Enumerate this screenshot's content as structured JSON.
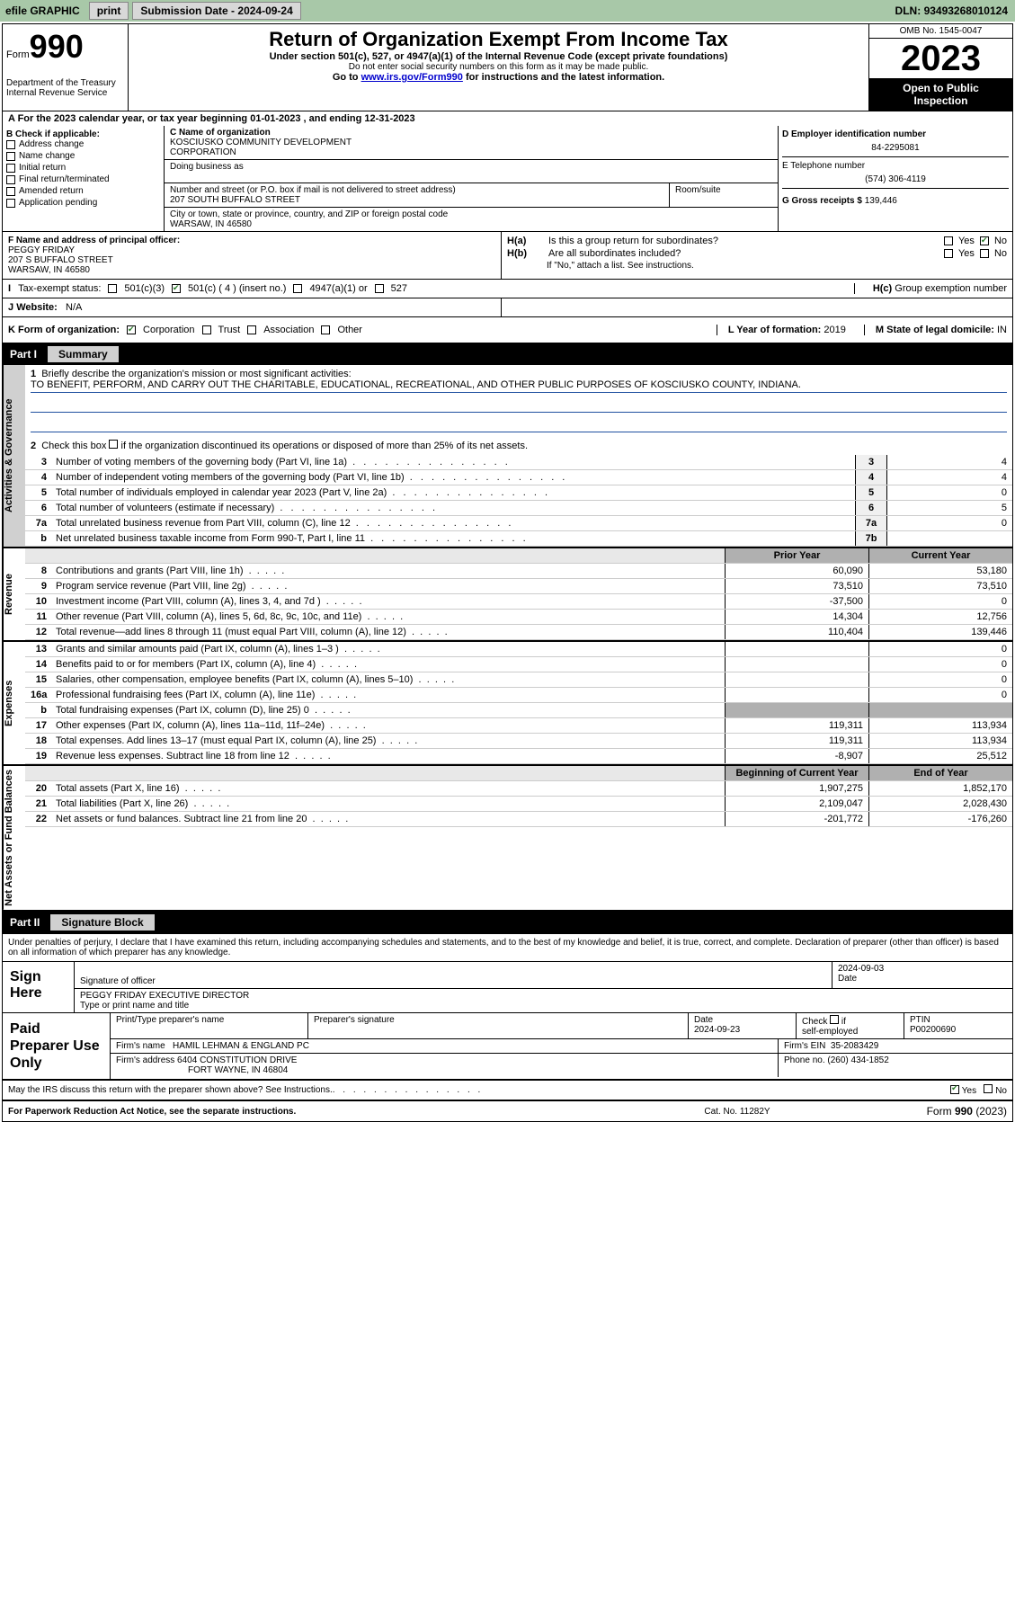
{
  "topbar": {
    "efile": "efile GRAPHIC",
    "print": "print",
    "submission_label": "Submission Date -",
    "submission_date": "2024-09-24",
    "dln_label": "DLN:",
    "dln": "93493268010124"
  },
  "header": {
    "form_label": "Form",
    "form_number": "990",
    "dept1": "Department of the Treasury",
    "dept2": "Internal Revenue Service",
    "title": "Return of Organization Exempt From Income Tax",
    "subtitle1": "Under section 501(c), 527, or 4947(a)(1) of the Internal Revenue Code (except private foundations)",
    "subtitle2": "Do not enter social security numbers on this form as it may be made public.",
    "subtitle3": "Go to www.irs.gov/Form990 for instructions and the latest information.",
    "omb": "OMB No. 1545-0047",
    "year": "2023",
    "inspect1": "Open to Public",
    "inspect2": "Inspection"
  },
  "tax_year": {
    "prefix": "A For the 2023 calendar year, or tax year beginning",
    "begin": "01-01-2023",
    "mid": ", and ending",
    "end": "12-31-2023"
  },
  "section_b": {
    "label": "B Check if applicable:",
    "opts": [
      "Address change",
      "Name change",
      "Initial return",
      "Final return/terminated",
      "Amended return",
      "Application pending"
    ]
  },
  "section_c": {
    "name_label": "C Name of organization",
    "name1": "KOSCIUSKO COMMUNITY DEVELOPMENT",
    "name2": "CORPORATION",
    "dba_label": "Doing business as",
    "street_label": "Number and street (or P.O. box if mail is not delivered to street address)",
    "street": "207 SOUTH BUFFALO STREET",
    "room_label": "Room/suite",
    "city_label": "City or town, state or province, country, and ZIP or foreign postal code",
    "city": "WARSAW, IN  46580"
  },
  "section_d": {
    "label": "D Employer identification number",
    "ein": "84-2295081"
  },
  "section_e": {
    "label": "E Telephone number",
    "phone": "(574) 306-4119"
  },
  "section_g": {
    "label": "G Gross receipts $",
    "amount": "139,446"
  },
  "section_f": {
    "label": "F Name and address of principal officer:",
    "name": "PEGGY FRIDAY",
    "street": "207 S BUFFALO STREET",
    "city": "WARSAW, IN  46580"
  },
  "section_h": {
    "a_label": "H(a)",
    "a_text": "Is this a group return for subordinates?",
    "b_label": "H(b)",
    "b_text": "Are all subordinates included?",
    "b_note": "If \"No,\" attach a list. See instructions.",
    "c_label": "H(c)",
    "c_text": "Group exemption number",
    "yes": "Yes",
    "no": "No"
  },
  "section_i": {
    "label": "I",
    "text": "Tax-exempt status:",
    "opts": [
      "501(c)(3)",
      "501(c) ( 4 ) (insert no.)",
      "4947(a)(1) or",
      "527"
    ]
  },
  "section_j": {
    "label": "J",
    "text": "Website:",
    "val": "N/A"
  },
  "section_k": {
    "label": "K Form of organization:",
    "opts": [
      "Corporation",
      "Trust",
      "Association",
      "Other"
    ]
  },
  "section_l": {
    "label": "L Year of formation:",
    "val": "2019"
  },
  "section_m": {
    "label": "M State of legal domicile:",
    "val": "IN"
  },
  "part1": {
    "num": "Part I",
    "title": "Summary",
    "tab_gov": "Activities & Governance",
    "tab_rev": "Revenue",
    "tab_exp": "Expenses",
    "tab_net": "Net Assets or Fund Balances",
    "line1_label": "Briefly describe the organization's mission or most significant activities:",
    "line1_text": "TO BENEFIT, PERFORM, AND CARRY OUT THE CHARITABLE, EDUCATIONAL, RECREATIONAL, AND OTHER PUBLIC PURPOSES OF KOSCIUSKO COUNTY, INDIANA.",
    "line2": "Check this box      if the organization discontinued its operations or disposed of more than 25% of its net assets.",
    "lines_gov": [
      {
        "n": "3",
        "t": "Number of voting members of the governing body (Part VI, line 1a)",
        "box": "3",
        "v": "4"
      },
      {
        "n": "4",
        "t": "Number of independent voting members of the governing body (Part VI, line 1b)",
        "box": "4",
        "v": "4"
      },
      {
        "n": "5",
        "t": "Total number of individuals employed in calendar year 2023 (Part V, line 2a)",
        "box": "5",
        "v": "0"
      },
      {
        "n": "6",
        "t": "Total number of volunteers (estimate if necessary)",
        "box": "6",
        "v": "5"
      },
      {
        "n": "7a",
        "t": "Total unrelated business revenue from Part VIII, column (C), line 12",
        "box": "7a",
        "v": "0"
      },
      {
        "n": "b",
        "t": "Net unrelated business taxable income from Form 990-T, Part I, line 11",
        "box": "7b",
        "v": ""
      }
    ],
    "col_prior": "Prior Year",
    "col_current": "Current Year",
    "lines_rev": [
      {
        "n": "8",
        "t": "Contributions and grants (Part VIII, line 1h)",
        "p": "60,090",
        "c": "53,180"
      },
      {
        "n": "9",
        "t": "Program service revenue (Part VIII, line 2g)",
        "p": "73,510",
        "c": "73,510"
      },
      {
        "n": "10",
        "t": "Investment income (Part VIII, column (A), lines 3, 4, and 7d )",
        "p": "-37,500",
        "c": "0"
      },
      {
        "n": "11",
        "t": "Other revenue (Part VIII, column (A), lines 5, 6d, 8c, 9c, 10c, and 11e)",
        "p": "14,304",
        "c": "12,756"
      },
      {
        "n": "12",
        "t": "Total revenue—add lines 8 through 11 (must equal Part VIII, column (A), line 12)",
        "p": "110,404",
        "c": "139,446"
      }
    ],
    "lines_exp": [
      {
        "n": "13",
        "t": "Grants and similar amounts paid (Part IX, column (A), lines 1–3 )",
        "p": "",
        "c": "0"
      },
      {
        "n": "14",
        "t": "Benefits paid to or for members (Part IX, column (A), line 4)",
        "p": "",
        "c": "0"
      },
      {
        "n": "15",
        "t": "Salaries, other compensation, employee benefits (Part IX, column (A), lines 5–10)",
        "p": "",
        "c": "0"
      },
      {
        "n": "16a",
        "t": "Professional fundraising fees (Part IX, column (A), line 11e)",
        "p": "",
        "c": "0"
      },
      {
        "n": "b",
        "t": "Total fundraising expenses (Part IX, column (D), line 25) 0",
        "p": "GRAY",
        "c": "GRAY"
      },
      {
        "n": "17",
        "t": "Other expenses (Part IX, column (A), lines 11a–11d, 11f–24e)",
        "p": "119,311",
        "c": "113,934"
      },
      {
        "n": "18",
        "t": "Total expenses. Add lines 13–17 (must equal Part IX, column (A), line 25)",
        "p": "119,311",
        "c": "113,934"
      },
      {
        "n": "19",
        "t": "Revenue less expenses. Subtract line 18 from line 12",
        "p": "-8,907",
        "c": "25,512"
      }
    ],
    "col_begin": "Beginning of Current Year",
    "col_end": "End of Year",
    "lines_net": [
      {
        "n": "20",
        "t": "Total assets (Part X, line 16)",
        "p": "1,907,275",
        "c": "1,852,170"
      },
      {
        "n": "21",
        "t": "Total liabilities (Part X, line 26)",
        "p": "2,109,047",
        "c": "2,028,430"
      },
      {
        "n": "22",
        "t": "Net assets or fund balances. Subtract line 21 from line 20",
        "p": "-201,772",
        "c": "-176,260"
      }
    ]
  },
  "part2": {
    "num": "Part II",
    "title": "Signature Block",
    "intro": "Under penalties of perjury, I declare that I have examined this return, including accompanying schedules and statements, and to the best of my knowledge and belief, it is true, correct, and complete. Declaration of preparer (other than officer) is based on all information of which preparer has any knowledge."
  },
  "sign": {
    "label": "Sign Here",
    "sig_label": "Signature of officer",
    "date_label": "Date",
    "date": "2024-09-03",
    "name": "PEGGY FRIDAY EXECUTIVE DIRECTOR",
    "name_label": "Type or print name and title"
  },
  "paid": {
    "label": "Paid Preparer Use Only",
    "prep_name_label": "Print/Type preparer's name",
    "prep_sig_label": "Preparer's signature",
    "prep_date_label": "Date",
    "prep_date": "2024-09-23",
    "check_label": "Check      if self-employed",
    "ptin_label": "PTIN",
    "ptin": "P00200690",
    "firm_name_label": "Firm's name",
    "firm_name": "HAMIL LEHMAN & ENGLAND PC",
    "firm_ein_label": "Firm's EIN",
    "firm_ein": "35-2083429",
    "firm_addr_label": "Firm's address",
    "firm_addr1": "6404 CONSTITUTION DRIVE",
    "firm_addr2": "FORT WAYNE, IN  46804",
    "phone_label": "Phone no.",
    "phone": "(260) 434-1852"
  },
  "discuss": {
    "text": "May the IRS discuss this return with the preparer shown above? See Instructions.",
    "yes": "Yes",
    "no": "No"
  },
  "footer": {
    "left": "For Paperwork Reduction Act Notice, see the separate instructions.",
    "mid": "Cat. No. 11282Y",
    "right_label": "Form",
    "right_form": "990",
    "right_year": "(2023)"
  }
}
